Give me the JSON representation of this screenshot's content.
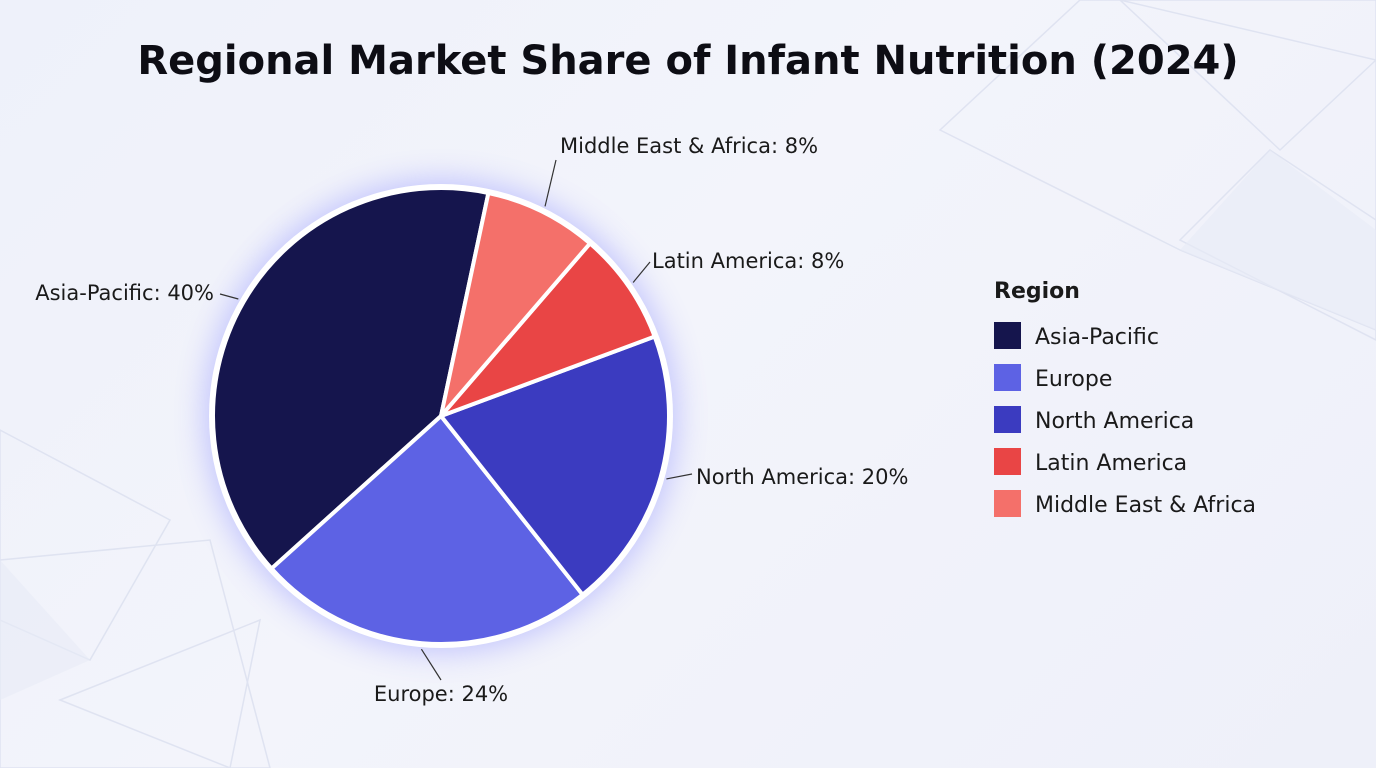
{
  "chart_data": {
    "type": "pie",
    "title": "Regional Market Share of Infant Nutrition (2024)",
    "slices": [
      {
        "name": "Asia-Pacific",
        "value": 40,
        "label": "Asia-Pacific: 40%",
        "color": "#15154d"
      },
      {
        "name": "Europe",
        "value": 24,
        "label": "Europe: 24%",
        "color": "#5d62e4"
      },
      {
        "name": "North America",
        "value": 20,
        "label": "North America: 20%",
        "color": "#3b3bc0"
      },
      {
        "name": "Latin America",
        "value": 8,
        "label": "Latin America: 8%",
        "color": "#e94545"
      },
      {
        "name": "Middle East & Africa",
        "value": 8,
        "label": "Middle East & Africa: 8%",
        "color": "#f4706a"
      }
    ],
    "legend": {
      "title": "Region",
      "placement": "right",
      "items": [
        "Asia-Pacific",
        "Europe",
        "North America",
        "Latin America",
        "Middle East & Africa"
      ]
    }
  }
}
